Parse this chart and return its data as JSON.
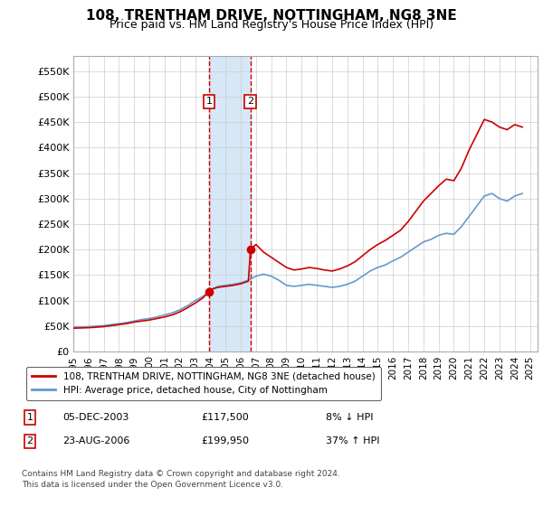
{
  "title": "108, TRENTHAM DRIVE, NOTTINGHAM, NG8 3NE",
  "subtitle": "Price paid vs. HM Land Registry's House Price Index (HPI)",
  "title_fontsize": 11,
  "subtitle_fontsize": 9,
  "ylabel_ticks": [
    "£0",
    "£50K",
    "£100K",
    "£150K",
    "£200K",
    "£250K",
    "£300K",
    "£350K",
    "£400K",
    "£450K",
    "£500K",
    "£550K"
  ],
  "ytick_values": [
    0,
    50000,
    100000,
    150000,
    200000,
    250000,
    300000,
    350000,
    400000,
    450000,
    500000,
    550000
  ],
  "ylim": [
    0,
    580000
  ],
  "xlim_start": 1995.0,
  "xlim_end": 2025.5,
  "transaction1_x": 2003.92,
  "transaction1_y": 117500,
  "transaction2_x": 2006.64,
  "transaction2_y": 199950,
  "shade_color": "#d6e8f7",
  "red_color": "#cc0000",
  "blue_color": "#6699cc",
  "marker_color": "#cc0000",
  "legend_label_red": "108, TRENTHAM DRIVE, NOTTINGHAM, NG8 3NE (detached house)",
  "legend_label_blue": "HPI: Average price, detached house, City of Nottingham",
  "table_row1": [
    "1",
    "05-DEC-2003",
    "£117,500",
    "8% ↓ HPI"
  ],
  "table_row2": [
    "2",
    "23-AUG-2006",
    "£199,950",
    "37% ↑ HPI"
  ],
  "footer1": "Contains HM Land Registry data © Crown copyright and database right 2024.",
  "footer2": "This data is licensed under the Open Government Licence v3.0.",
  "hpi_years": [
    1995,
    1995.5,
    1996,
    1996.5,
    1997,
    1997.5,
    1998,
    1998.5,
    1999,
    1999.5,
    2000,
    2000.5,
    2001,
    2001.5,
    2002,
    2002.5,
    2003,
    2003.5,
    2004,
    2004.5,
    2005,
    2005.5,
    2006,
    2006.5,
    2007,
    2007.5,
    2008,
    2008.5,
    2009,
    2009.5,
    2010,
    2010.5,
    2011,
    2011.5,
    2012,
    2012.5,
    2013,
    2013.5,
    2014,
    2014.5,
    2015,
    2015.5,
    2016,
    2016.5,
    2017,
    2017.5,
    2018,
    2018.5,
    2019,
    2019.5,
    2020,
    2020.5,
    2021,
    2021.5,
    2022,
    2022.5,
    2023,
    2023.5,
    2024,
    2024.5
  ],
  "hpi_values": [
    48000,
    48500,
    49000,
    50000,
    51000,
    53000,
    55000,
    57000,
    60000,
    63000,
    65000,
    68000,
    72000,
    76000,
    82000,
    90000,
    100000,
    108000,
    120000,
    128000,
    130000,
    132000,
    135000,
    140000,
    148000,
    152000,
    148000,
    140000,
    130000,
    128000,
    130000,
    132000,
    130000,
    128000,
    126000,
    128000,
    132000,
    138000,
    148000,
    158000,
    165000,
    170000,
    178000,
    185000,
    195000,
    205000,
    215000,
    220000,
    228000,
    232000,
    230000,
    245000,
    265000,
    285000,
    305000,
    310000,
    300000,
    295000,
    305000,
    310000
  ],
  "red_years": [
    1995,
    1995.5,
    1996,
    1996.5,
    1997,
    1997.5,
    1998,
    1998.5,
    1999,
    1999.5,
    2000,
    2000.5,
    2001,
    2001.5,
    2002,
    2002.5,
    2003,
    2003.5,
    2003.92,
    2004,
    2004.5,
    2005,
    2005.5,
    2006,
    2006.5,
    2006.64,
    2007,
    2007.5,
    2008,
    2008.5,
    2009,
    2009.5,
    2010,
    2010.5,
    2011,
    2011.5,
    2012,
    2012.5,
    2013,
    2013.5,
    2014,
    2014.5,
    2015,
    2015.5,
    2016,
    2016.5,
    2017,
    2017.5,
    2018,
    2018.5,
    2019,
    2019.5,
    2020,
    2020.5,
    2021,
    2021.5,
    2022,
    2022.5,
    2023,
    2023.5,
    2024,
    2024.5
  ],
  "red_values": [
    46000,
    46500,
    47000,
    48000,
    49000,
    51000,
    53000,
    55000,
    58000,
    60000,
    62000,
    65000,
    68000,
    72000,
    78000,
    86000,
    95000,
    105000,
    117500,
    122000,
    126000,
    128000,
    130000,
    133000,
    138000,
    199950,
    210000,
    195000,
    185000,
    175000,
    165000,
    160000,
    162000,
    165000,
    163000,
    160000,
    158000,
    162000,
    168000,
    176000,
    188000,
    200000,
    210000,
    218000,
    228000,
    238000,
    255000,
    275000,
    295000,
    310000,
    325000,
    338000,
    335000,
    360000,
    395000,
    425000,
    455000,
    450000,
    440000,
    435000,
    445000,
    440000
  ]
}
